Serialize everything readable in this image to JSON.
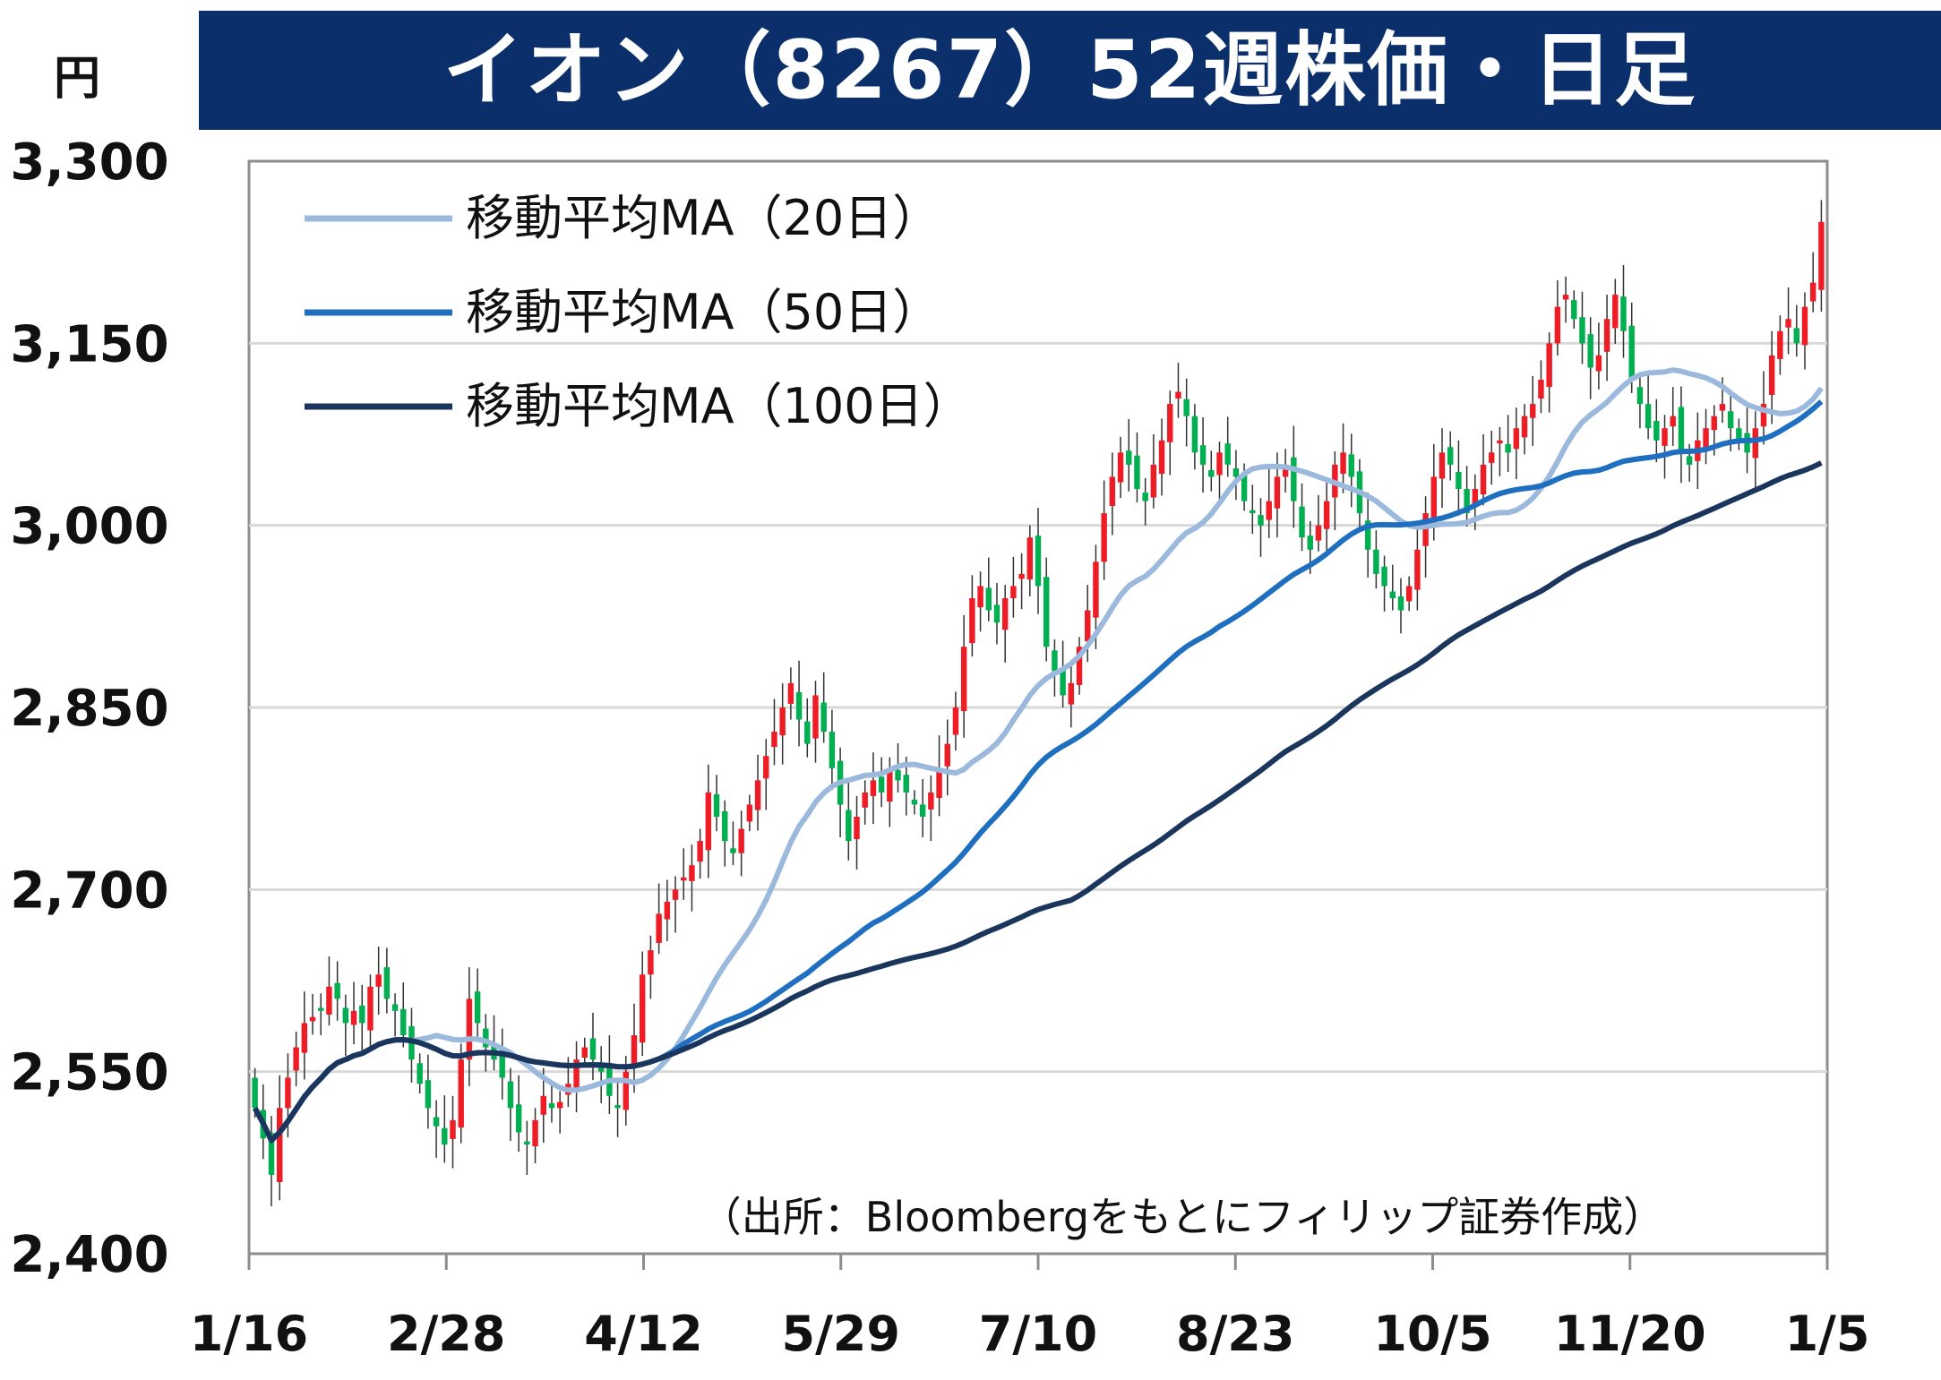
{
  "chart_data": {
    "type": "candlestick",
    "title": "イオン（8267）52週株価・日足",
    "ylabel": "円",
    "ylim": [
      2400,
      3300
    ],
    "yticks": [
      "3,300",
      "3,150",
      "3,000",
      "2,850",
      "2,700",
      "2,550",
      "2,400"
    ],
    "xticks": [
      "1/16",
      "2/28",
      "4/12",
      "5/29",
      "7/10",
      "8/23",
      "10/5",
      "11/20",
      "1/5"
    ],
    "grid": true,
    "legend_position": "top-left",
    "legend": [
      {
        "name": "移動平均MA（20日）",
        "color": "#9bb8dd"
      },
      {
        "name": "移動平均MA（50日）",
        "color": "#1f6fc1"
      },
      {
        "name": "移動平均MA（100日）",
        "color": "#1b365d"
      }
    ],
    "source": "（出所：Bloombergをもとにフィリップ証券作成）",
    "colors": {
      "up": "#ee1c25",
      "down": "#00b050",
      "grid": "#d9d9d9",
      "axis": "#8c8c8c"
    },
    "close": [
      2520,
      2495,
      2465,
      2520,
      2545,
      2570,
      2590,
      2595,
      2600,
      2620,
      2610,
      2590,
      2600,
      2590,
      2620,
      2630,
      2610,
      2600,
      2580,
      2560,
      2540,
      2520,
      2505,
      2490,
      2510,
      2560,
      2610,
      2590,
      2570,
      2560,
      2545,
      2520,
      2500,
      2490,
      2510,
      2530,
      2520,
      2525,
      2540,
      2560,
      2570,
      2560,
      2550,
      2530,
      2520,
      2550,
      2580,
      2630,
      2650,
      2680,
      2690,
      2700,
      2710,
      2720,
      2740,
      2780,
      2760,
      2740,
      2730,
      2750,
      2770,
      2790,
      2810,
      2830,
      2850,
      2870,
      2840,
      2820,
      2860,
      2830,
      2800,
      2770,
      2740,
      2760,
      2780,
      2790,
      2780,
      2800,
      2790,
      2780,
      2770,
      2760,
      2780,
      2800,
      2820,
      2850,
      2900,
      2940,
      2950,
      2930,
      2920,
      2940,
      2950,
      2960,
      2990,
      2950,
      2900,
      2880,
      2860,
      2870,
      2900,
      2930,
      2970,
      3010,
      3040,
      3060,
      3050,
      3030,
      3020,
      3050,
      3070,
      3100,
      3110,
      3090,
      3060,
      3050,
      3040,
      3060,
      3050,
      3040,
      3020,
      3010,
      3000,
      3020,
      3040,
      3050,
      3020,
      2990,
      2980,
      3000,
      3020,
      3050,
      3060,
      3040,
      3010,
      2980,
      2960,
      2950,
      2940,
      2930,
      2950,
      2980,
      3010,
      3040,
      3060,
      3050,
      3030,
      3010,
      3030,
      3050,
      3060,
      3070,
      3060,
      3080,
      3090,
      3100,
      3120,
      3150,
      3180,
      3190,
      3170,
      3150,
      3130,
      3140,
      3170,
      3190,
      3160,
      3120,
      3100,
      3080,
      3070,
      3080,
      3090,
      3060,
      3050,
      3070,
      3080,
      3090,
      3100,
      3080,
      3070,
      3060,
      3080,
      3100,
      3140,
      3160,
      3170,
      3150,
      3180,
      3200,
      3250
    ]
  }
}
